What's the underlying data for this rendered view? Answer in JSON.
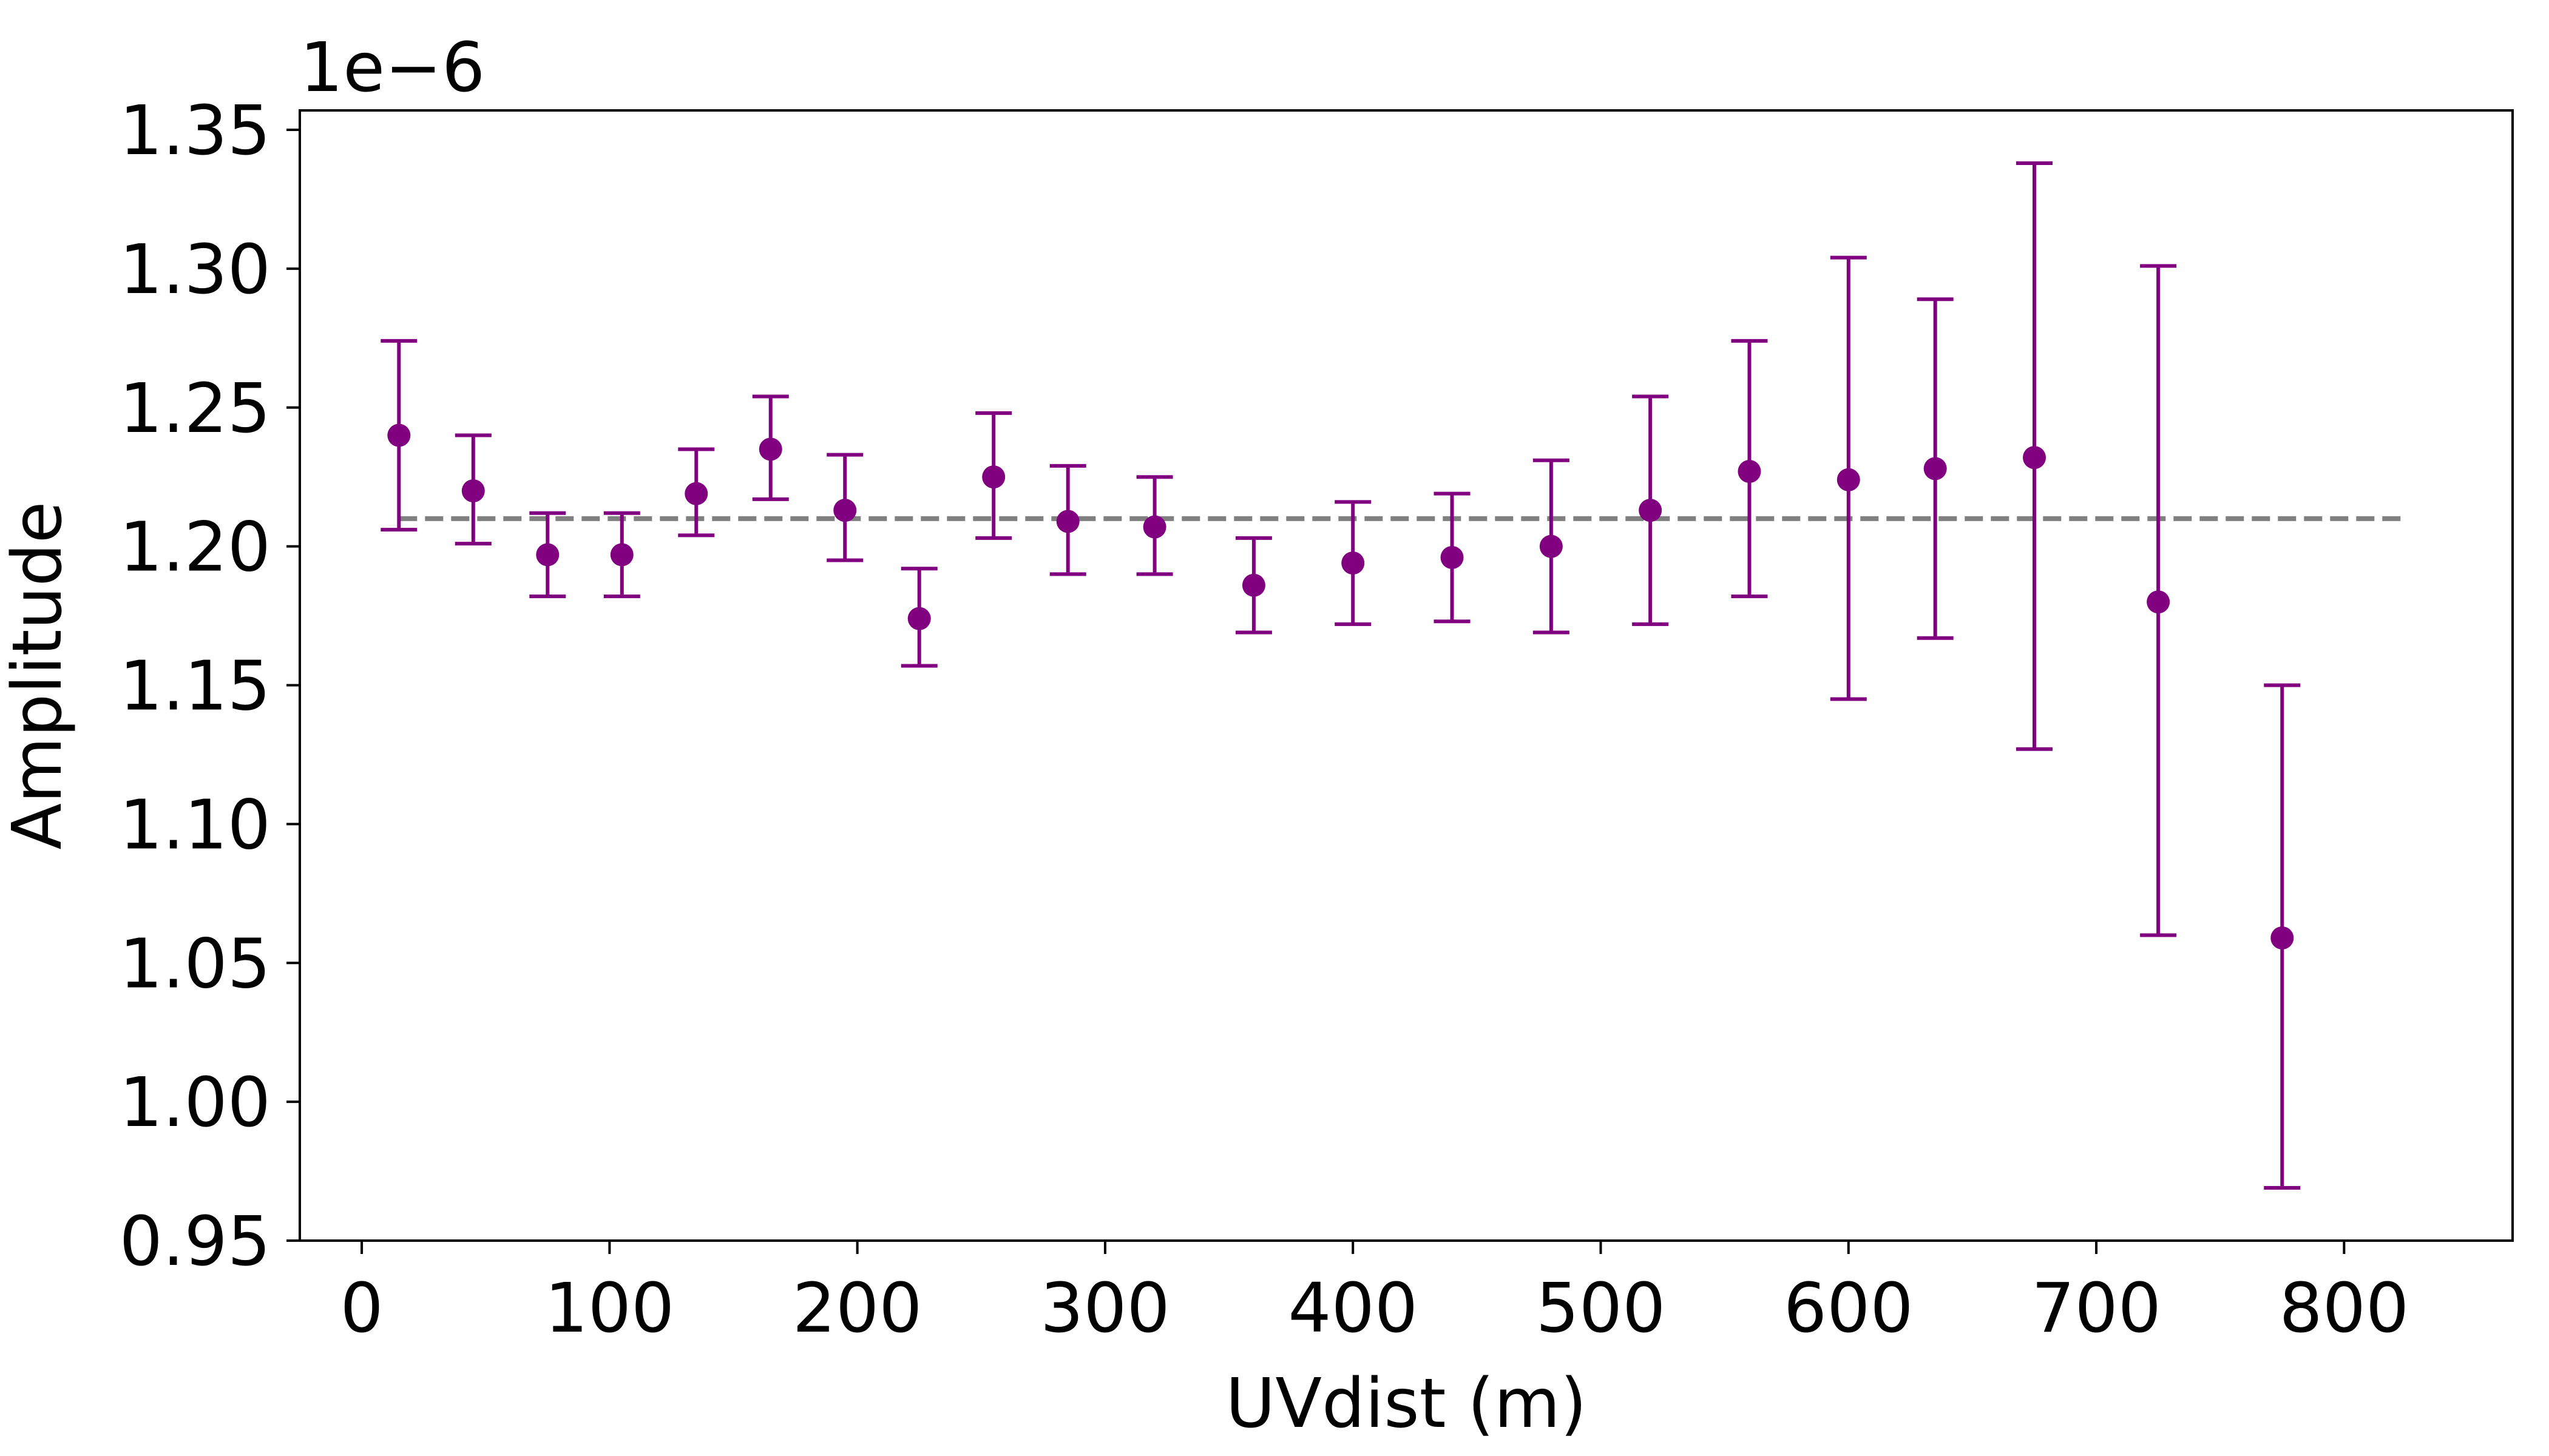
{
  "chart_data": {
    "type": "scatter",
    "title": "",
    "xlabel": "UVdist (m)",
    "ylabel": "Amplitude",
    "offset_text": "1e−6",
    "xlim": [
      -25,
      868
    ],
    "ylim": [
      0.95,
      1.357
    ],
    "xticks": [
      0,
      100,
      200,
      300,
      400,
      500,
      600,
      700,
      800
    ],
    "xtick_labels": [
      "0",
      "100",
      "200",
      "300",
      "400",
      "500",
      "600",
      "700",
      "800"
    ],
    "yticks": [
      0.95,
      1.0,
      1.05,
      1.1,
      1.15,
      1.2,
      1.25,
      1.3,
      1.35
    ],
    "ytick_labels": [
      "0.95",
      "1.00",
      "1.05",
      "1.10",
      "1.15",
      "1.20",
      "1.25",
      "1.30",
      "1.35"
    ],
    "grid": false,
    "legend": "none",
    "colors": {
      "points": "#800080",
      "reference": "#808080"
    },
    "reference_line": {
      "y": 1.21,
      "x_start": 15,
      "x_end": 825,
      "style": "dashed"
    },
    "series": [
      {
        "x": [
          15,
          45,
          75,
          105,
          135,
          165,
          195,
          225,
          255,
          285,
          320,
          360,
          400,
          440,
          480,
          520,
          560,
          600,
          635,
          675,
          725,
          775
        ],
        "y": [
          1.24,
          1.22,
          1.197,
          1.197,
          1.219,
          1.235,
          1.213,
          1.174,
          1.225,
          1.209,
          1.207,
          1.186,
          1.194,
          1.196,
          1.2,
          1.213,
          1.227,
          1.224,
          1.228,
          1.232,
          1.18,
          1.059
        ],
        "y_low": [
          1.206,
          1.201,
          1.182,
          1.182,
          1.204,
          1.217,
          1.195,
          1.157,
          1.203,
          1.19,
          1.19,
          1.169,
          1.172,
          1.173,
          1.169,
          1.172,
          1.182,
          1.145,
          1.167,
          1.127,
          1.06,
          0.969
        ],
        "y_high": [
          1.274,
          1.24,
          1.212,
          1.212,
          1.235,
          1.254,
          1.233,
          1.192,
          1.248,
          1.229,
          1.225,
          1.203,
          1.216,
          1.219,
          1.231,
          1.254,
          1.274,
          1.304,
          1.289,
          1.338,
          1.301,
          1.15
        ]
      }
    ]
  }
}
